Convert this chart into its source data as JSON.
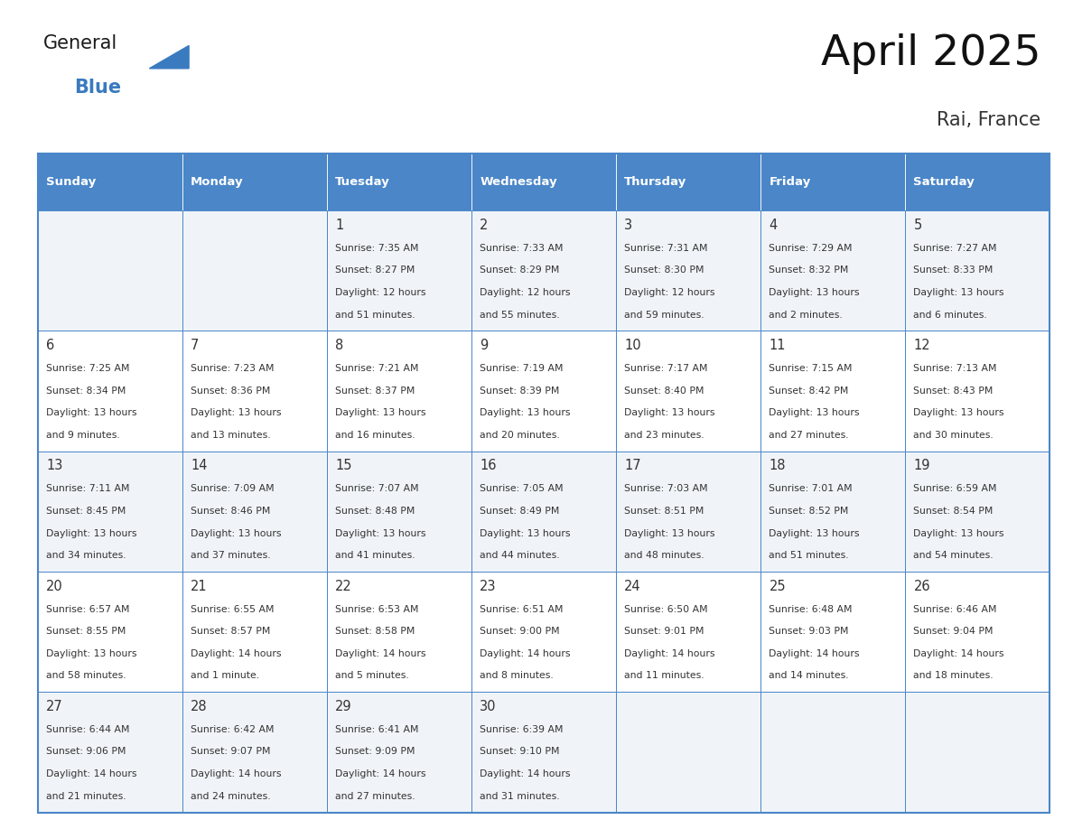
{
  "title": "April 2025",
  "subtitle": "Rai, France",
  "header_color": "#4a86c8",
  "header_text_color": "#ffffff",
  "cell_bg_even": "#f0f4f8",
  "cell_bg_odd": "#ffffff",
  "border_color": "#4a86c8",
  "text_color": "#333333",
  "days_of_week": [
    "Sunday",
    "Monday",
    "Tuesday",
    "Wednesday",
    "Thursday",
    "Friday",
    "Saturday"
  ],
  "weeks": [
    [
      {
        "day": null,
        "sunrise": null,
        "sunset": null,
        "daylight": null
      },
      {
        "day": null,
        "sunrise": null,
        "sunset": null,
        "daylight": null
      },
      {
        "day": 1,
        "sunrise": "7:35 AM",
        "sunset": "8:27 PM",
        "daylight": "12 hours\nand 51 minutes."
      },
      {
        "day": 2,
        "sunrise": "7:33 AM",
        "sunset": "8:29 PM",
        "daylight": "12 hours\nand 55 minutes."
      },
      {
        "day": 3,
        "sunrise": "7:31 AM",
        "sunset": "8:30 PM",
        "daylight": "12 hours\nand 59 minutes."
      },
      {
        "day": 4,
        "sunrise": "7:29 AM",
        "sunset": "8:32 PM",
        "daylight": "13 hours\nand 2 minutes."
      },
      {
        "day": 5,
        "sunrise": "7:27 AM",
        "sunset": "8:33 PM",
        "daylight": "13 hours\nand 6 minutes."
      }
    ],
    [
      {
        "day": 6,
        "sunrise": "7:25 AM",
        "sunset": "8:34 PM",
        "daylight": "13 hours\nand 9 minutes."
      },
      {
        "day": 7,
        "sunrise": "7:23 AM",
        "sunset": "8:36 PM",
        "daylight": "13 hours\nand 13 minutes."
      },
      {
        "day": 8,
        "sunrise": "7:21 AM",
        "sunset": "8:37 PM",
        "daylight": "13 hours\nand 16 minutes."
      },
      {
        "day": 9,
        "sunrise": "7:19 AM",
        "sunset": "8:39 PM",
        "daylight": "13 hours\nand 20 minutes."
      },
      {
        "day": 10,
        "sunrise": "7:17 AM",
        "sunset": "8:40 PM",
        "daylight": "13 hours\nand 23 minutes."
      },
      {
        "day": 11,
        "sunrise": "7:15 AM",
        "sunset": "8:42 PM",
        "daylight": "13 hours\nand 27 minutes."
      },
      {
        "day": 12,
        "sunrise": "7:13 AM",
        "sunset": "8:43 PM",
        "daylight": "13 hours\nand 30 minutes."
      }
    ],
    [
      {
        "day": 13,
        "sunrise": "7:11 AM",
        "sunset": "8:45 PM",
        "daylight": "13 hours\nand 34 minutes."
      },
      {
        "day": 14,
        "sunrise": "7:09 AM",
        "sunset": "8:46 PM",
        "daylight": "13 hours\nand 37 minutes."
      },
      {
        "day": 15,
        "sunrise": "7:07 AM",
        "sunset": "8:48 PM",
        "daylight": "13 hours\nand 41 minutes."
      },
      {
        "day": 16,
        "sunrise": "7:05 AM",
        "sunset": "8:49 PM",
        "daylight": "13 hours\nand 44 minutes."
      },
      {
        "day": 17,
        "sunrise": "7:03 AM",
        "sunset": "8:51 PM",
        "daylight": "13 hours\nand 48 minutes."
      },
      {
        "day": 18,
        "sunrise": "7:01 AM",
        "sunset": "8:52 PM",
        "daylight": "13 hours\nand 51 minutes."
      },
      {
        "day": 19,
        "sunrise": "6:59 AM",
        "sunset": "8:54 PM",
        "daylight": "13 hours\nand 54 minutes."
      }
    ],
    [
      {
        "day": 20,
        "sunrise": "6:57 AM",
        "sunset": "8:55 PM",
        "daylight": "13 hours\nand 58 minutes."
      },
      {
        "day": 21,
        "sunrise": "6:55 AM",
        "sunset": "8:57 PM",
        "daylight": "14 hours\nand 1 minute."
      },
      {
        "day": 22,
        "sunrise": "6:53 AM",
        "sunset": "8:58 PM",
        "daylight": "14 hours\nand 5 minutes."
      },
      {
        "day": 23,
        "sunrise": "6:51 AM",
        "sunset": "9:00 PM",
        "daylight": "14 hours\nand 8 minutes."
      },
      {
        "day": 24,
        "sunrise": "6:50 AM",
        "sunset": "9:01 PM",
        "daylight": "14 hours\nand 11 minutes."
      },
      {
        "day": 25,
        "sunrise": "6:48 AM",
        "sunset": "9:03 PM",
        "daylight": "14 hours\nand 14 minutes."
      },
      {
        "day": 26,
        "sunrise": "6:46 AM",
        "sunset": "9:04 PM",
        "daylight": "14 hours\nand 18 minutes."
      }
    ],
    [
      {
        "day": 27,
        "sunrise": "6:44 AM",
        "sunset": "9:06 PM",
        "daylight": "14 hours\nand 21 minutes."
      },
      {
        "day": 28,
        "sunrise": "6:42 AM",
        "sunset": "9:07 PM",
        "daylight": "14 hours\nand 24 minutes."
      },
      {
        "day": 29,
        "sunrise": "6:41 AM",
        "sunset": "9:09 PM",
        "daylight": "14 hours\nand 27 minutes."
      },
      {
        "day": 30,
        "sunrise": "6:39 AM",
        "sunset": "9:10 PM",
        "daylight": "14 hours\nand 31 minutes."
      },
      {
        "day": null,
        "sunrise": null,
        "sunset": null,
        "daylight": null
      },
      {
        "day": null,
        "sunrise": null,
        "sunset": null,
        "daylight": null
      },
      {
        "day": null,
        "sunrise": null,
        "sunset": null,
        "daylight": null
      }
    ]
  ],
  "logo_color_general": "#1a1a1a",
  "logo_color_blue": "#3a7abf",
  "logo_text_general": "General",
  "logo_text_blue": "Blue"
}
